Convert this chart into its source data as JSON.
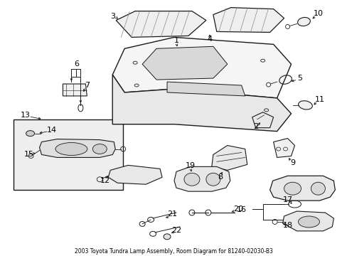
{
  "title": "2003 Toyota Tundra Lamp Assembly, Room Diagram for 81240-02030-B3",
  "bg_color": "#ffffff",
  "fig_width": 4.89,
  "fig_height": 3.6,
  "dpi": 100
}
